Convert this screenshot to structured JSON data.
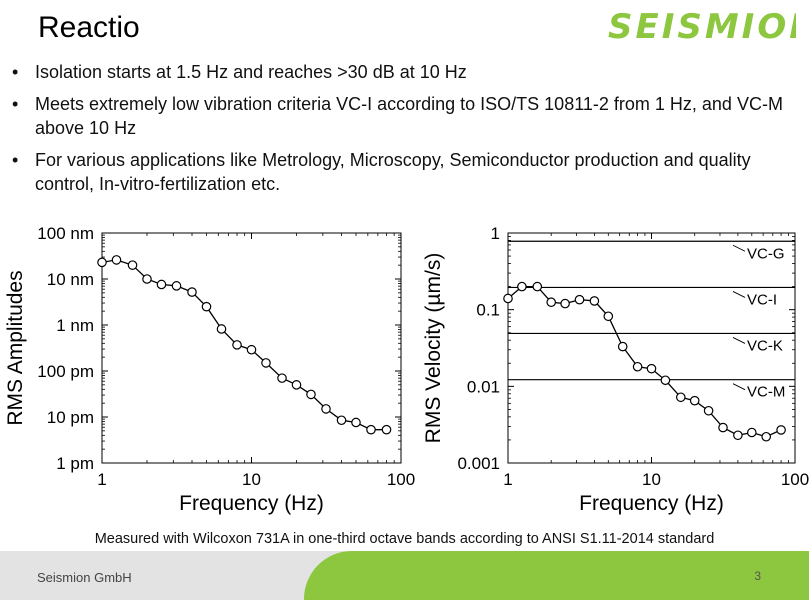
{
  "slide": {
    "title": "Reactio",
    "logo_text": "SEISMION",
    "bullets": [
      "Isolation starts at 1.5 Hz and reaches >30 dB at 10 Hz",
      "Meets extremely low vibration criteria VC-I according to ISO/TS 10811-2 from 1 Hz, and VC-M above 10 Hz",
      "For various applications like Metrology, Microscopy, Semiconductor production and quality control, In-vitro-fertilization etc."
    ],
    "caption": "Measured with Wilcoxon 731A in one-third octave bands according to ANSI S1.11-2014 standard",
    "footer_company": "Seismion GmbH",
    "page_number": "3"
  },
  "colors": {
    "brand_green": "#8dc63f",
    "footer_gray": "#e3e3e3",
    "line": "#000000"
  },
  "chart_data": [
    {
      "type": "line",
      "xscale": "log",
      "yscale": "log",
      "xlabel": "Frequency (Hz)",
      "ylabel": "RMS Amplitudes",
      "xlim": [
        1,
        100
      ],
      "ylim": [
        1e-12,
        1e-07
      ],
      "xticks": [
        1,
        10,
        100
      ],
      "xtick_labels": [
        "1",
        "10",
        "100"
      ],
      "yticks": [
        1e-12,
        1e-11,
        1e-10,
        1e-09,
        1e-08,
        1e-07
      ],
      "ytick_labels": [
        "1 pm",
        "10 pm",
        "100 pm",
        "1 nm",
        "10 nm",
        "100 nm"
      ],
      "grid": false,
      "series": [
        {
          "marker": "circle",
          "x": [
            1,
            1.25,
            1.6,
            2,
            2.5,
            3.15,
            4,
            5,
            6.3,
            8,
            10,
            12.5,
            16,
            20,
            25,
            31.5,
            40,
            50,
            63,
            80
          ],
          "y": [
            2.3e-08,
            2.6e-08,
            2e-08,
            1e-08,
            7.6e-09,
            7.1e-09,
            5.2e-09,
            2.5e-09,
            8.2e-10,
            3.7e-10,
            2.9e-10,
            1.5e-10,
            7e-11,
            5e-11,
            3.1e-11,
            1.5e-11,
            8.5e-12,
            7.6e-12,
            5.3e-12,
            5.3e-12
          ]
        }
      ]
    },
    {
      "type": "line",
      "xscale": "log",
      "yscale": "log",
      "xlabel": "Frequency (Hz)",
      "ylabel": "RMS Velocity (µm/s)",
      "xlim": [
        1,
        100
      ],
      "ylim": [
        0.001,
        1
      ],
      "xticks": [
        1,
        10,
        100
      ],
      "xtick_labels": [
        "1",
        "10",
        "100"
      ],
      "yticks": [
        0.001,
        0.01,
        0.1,
        1
      ],
      "ytick_labels": [
        "0.001",
        "0.01",
        "0.1",
        "1"
      ],
      "grid": false,
      "reference_lines": [
        {
          "label": "VC-G",
          "value": 0.78
        },
        {
          "label": "VC-I",
          "value": 0.195
        },
        {
          "label": "VC-K",
          "value": 0.049
        },
        {
          "label": "VC-M",
          "value": 0.0122
        }
      ],
      "series": [
        {
          "marker": "circle",
          "x": [
            1,
            1.25,
            1.6,
            2,
            2.5,
            3.15,
            4,
            5,
            6.3,
            8,
            10,
            12.5,
            16,
            20,
            25,
            31.5,
            40,
            50,
            63,
            80
          ],
          "y": [
            0.14,
            0.2,
            0.2,
            0.125,
            0.12,
            0.135,
            0.13,
            0.082,
            0.033,
            0.018,
            0.017,
            0.012,
            0.0072,
            0.0065,
            0.0048,
            0.0029,
            0.0023,
            0.0025,
            0.0022,
            0.0027
          ]
        }
      ]
    }
  ]
}
